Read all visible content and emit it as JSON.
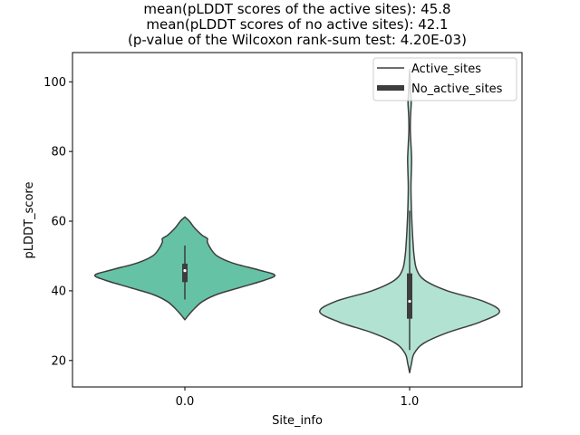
{
  "chart_data": {
    "type": "violin",
    "title": [
      "mean(pLDDT scores of the active sites): 45.8",
      "mean(pLDDT scores of no active sites): 42.1",
      "(p-value of the Wilcoxon rank-sum test: 4.20E-03)"
    ],
    "xlabel": "Site_info",
    "ylabel": "pLDDT_score",
    "categories": [
      "0.0",
      "1.0"
    ],
    "ylim": [
      12.4,
      108.4
    ],
    "yticks": [
      20,
      40,
      60,
      80,
      100
    ],
    "legend": {
      "placement": "top-right",
      "entries": [
        "Active_sites",
        "No_active_sites"
      ]
    },
    "violins": [
      {
        "category": "0.0",
        "color": "#66c2a5",
        "edge_color": "#3d3d3d",
        "median": 45.8,
        "q1": 42.5,
        "q3": 47.8,
        "whisker_low": 37.5,
        "whisker_high": 53.0,
        "profile": [
          [
            31.7,
            0.0
          ],
          [
            33.0,
            0.04
          ],
          [
            35.0,
            0.11
          ],
          [
            37.0,
            0.2
          ],
          [
            39.0,
            0.36
          ],
          [
            41.0,
            0.62
          ],
          [
            43.0,
            0.88
          ],
          [
            44.5,
            1.0
          ],
          [
            46.0,
            0.82
          ],
          [
            48.0,
            0.53
          ],
          [
            50.0,
            0.36
          ],
          [
            52.0,
            0.29
          ],
          [
            54.0,
            0.25
          ],
          [
            55.0,
            0.25
          ],
          [
            56.0,
            0.19
          ],
          [
            58.0,
            0.11
          ],
          [
            60.0,
            0.05
          ],
          [
            61.2,
            0.0
          ]
        ]
      },
      {
        "category": "1.0",
        "color": "#b2e2d2",
        "edge_color": "#3d3d3d",
        "median": 37.0,
        "q1": 32.0,
        "q3": 45.0,
        "whisker_low": 23.0,
        "whisker_high": 63.0,
        "profile": [
          [
            16.5,
            0.0
          ],
          [
            19.0,
            0.02
          ],
          [
            22.0,
            0.05
          ],
          [
            25.0,
            0.16
          ],
          [
            28.0,
            0.42
          ],
          [
            31.0,
            0.78
          ],
          [
            34.0,
            1.0
          ],
          [
            37.0,
            0.82
          ],
          [
            40.0,
            0.42
          ],
          [
            43.0,
            0.17
          ],
          [
            46.0,
            0.08
          ],
          [
            50.0,
            0.05
          ],
          [
            55.0,
            0.035
          ],
          [
            60.0,
            0.025
          ],
          [
            65.0,
            0.018
          ],
          [
            70.0,
            0.015
          ],
          [
            75.0,
            0.02
          ],
          [
            78.0,
            0.022
          ],
          [
            82.0,
            0.015
          ],
          [
            86.0,
            0.008
          ],
          [
            90.0,
            0.01
          ],
          [
            94.0,
            0.018
          ],
          [
            97.0,
            0.012
          ],
          [
            100.0,
            0.006
          ],
          [
            103.5,
            0.0
          ]
        ]
      }
    ]
  }
}
